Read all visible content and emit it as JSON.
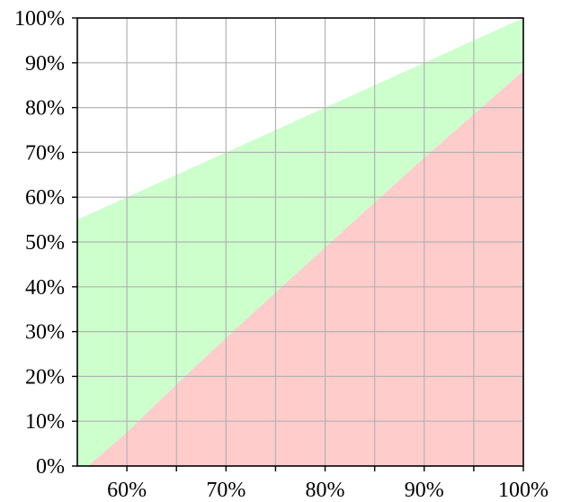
{
  "chart_data": {
    "type": "area",
    "title": "",
    "xlabel": "",
    "ylabel": "",
    "xlim": [
      55,
      100
    ],
    "ylim": [
      0,
      100
    ],
    "grid": true,
    "x_ticks": [
      60,
      65,
      70,
      75,
      80,
      85,
      90,
      95,
      100
    ],
    "x_tick_labels": [
      {
        "value": 60,
        "label": "60%"
      },
      {
        "value": 70,
        "label": "70%"
      },
      {
        "value": 80,
        "label": "80%"
      },
      {
        "value": 90,
        "label": "90%"
      },
      {
        "value": 100,
        "label": "100%"
      }
    ],
    "y_ticks": [
      {
        "value": 0,
        "label": "0%"
      },
      {
        "value": 10,
        "label": "10%"
      },
      {
        "value": 20,
        "label": "20%"
      },
      {
        "value": 30,
        "label": "30%"
      },
      {
        "value": 40,
        "label": "40%"
      },
      {
        "value": 50,
        "label": "50%"
      },
      {
        "value": 60,
        "label": "60%"
      },
      {
        "value": 70,
        "label": "70%"
      },
      {
        "value": 80,
        "label": "80%"
      },
      {
        "value": 90,
        "label": "90%"
      },
      {
        "value": 100,
        "label": "100%"
      }
    ],
    "series": [
      {
        "color": "#ccffcc",
        "x": [
          55,
          100
        ],
        "upper": [
          55,
          100
        ],
        "lower": [
          0,
          0
        ]
      },
      {
        "color": "#ffcccc",
        "x": [
          56.1,
          60,
          65,
          70,
          75,
          80,
          85,
          90,
          95,
          100
        ],
        "upper": [
          0,
          7.5,
          18.2,
          28.6,
          38.7,
          48.8,
          58.8,
          68.8,
          78.5,
          88.2
        ],
        "lower": [
          0,
          0,
          0,
          0,
          0,
          0,
          0,
          0,
          0,
          0
        ]
      }
    ],
    "colors": {
      "grid": "#b3b3b3",
      "axis": "#000000"
    }
  }
}
